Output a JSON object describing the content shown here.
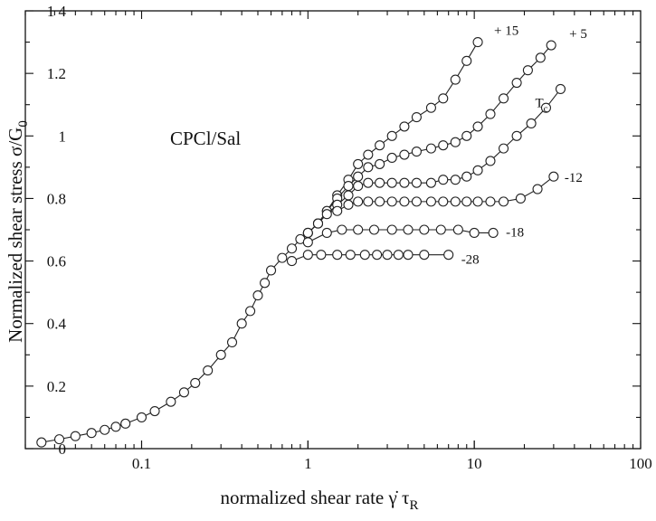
{
  "chart_data": {
    "type": "scatter",
    "title": "",
    "xlabel": "normalized shear rate",
    "xlabel_symbol": "γ̇ τ",
    "xlabel_subscript": "R",
    "ylabel": "Normalized shear stress",
    "ylabel_symbol": "σ/G",
    "ylabel_subscript": "0",
    "annotation": "CPCl/Sal",
    "x_scale": "log",
    "xlim": [
      0.02,
      100
    ],
    "ylim": [
      0,
      1.4
    ],
    "x_ticks": [
      {
        "value": 0.1,
        "label": "0.1"
      },
      {
        "value": 1,
        "label": "1"
      },
      {
        "value": 10,
        "label": "10"
      },
      {
        "value": 100,
        "label": "100"
      }
    ],
    "y_ticks": [
      {
        "value": 0,
        "label": "0"
      },
      {
        "value": 0.2,
        "label": "0.2"
      },
      {
        "value": 0.4,
        "label": "0.4"
      },
      {
        "value": 0.6,
        "label": "0.6"
      },
      {
        "value": 0.8,
        "label": "0.8"
      },
      {
        "value": 1,
        "label": "1"
      },
      {
        "value": 1.2,
        "label": "1.2"
      },
      {
        "value": 1.4,
        "label": "1 4"
      }
    ],
    "grid": false,
    "marker": "open-circle",
    "series": [
      {
        "name": "+ 15",
        "x": [
          0.025,
          0.032,
          0.04,
          0.05,
          0.06,
          0.07,
          0.08,
          0.1,
          0.12,
          0.15,
          0.18,
          0.21,
          0.25,
          0.3,
          0.35,
          0.4,
          0.45,
          0.5,
          0.55,
          0.6,
          0.7,
          0.8,
          0.9,
          1.0,
          1.15,
          1.3,
          1.5,
          1.75,
          2.0,
          2.3,
          2.7,
          3.2,
          3.8,
          4.5,
          5.5,
          6.5,
          7.7,
          9.0,
          10.5
        ],
        "y": [
          0.02,
          0.03,
          0.04,
          0.05,
          0.06,
          0.07,
          0.08,
          0.1,
          0.12,
          0.15,
          0.18,
          0.21,
          0.25,
          0.3,
          0.34,
          0.4,
          0.44,
          0.49,
          0.53,
          0.57,
          0.61,
          0.64,
          0.67,
          0.69,
          0.72,
          0.76,
          0.81,
          0.86,
          0.91,
          0.94,
          0.97,
          1.0,
          1.03,
          1.06,
          1.09,
          1.12,
          1.18,
          1.24,
          1.3
        ]
      },
      {
        "name": "+ 5",
        "x": [
          1.0,
          1.15,
          1.3,
          1.5,
          1.75,
          2.0,
          2.3,
          2.7,
          3.2,
          3.8,
          4.5,
          5.5,
          6.5,
          7.7,
          9.0,
          10.5,
          12.5,
          15.0,
          18.0,
          21.0,
          25.0,
          29.0
        ],
        "y": [
          0.69,
          0.72,
          0.76,
          0.8,
          0.84,
          0.87,
          0.9,
          0.91,
          0.93,
          0.94,
          0.95,
          0.96,
          0.97,
          0.98,
          1.0,
          1.03,
          1.07,
          1.12,
          1.17,
          1.21,
          1.25,
          1.29
        ]
      },
      {
        "name": "T",
        "name_subscript": "c",
        "x": [
          1.0,
          1.15,
          1.3,
          1.5,
          1.75,
          2.0,
          2.3,
          2.7,
          3.2,
          3.8,
          4.5,
          5.5,
          6.5,
          7.7,
          9.0,
          10.5,
          12.5,
          15.0,
          18.0,
          22.0,
          27.0,
          33.0
        ],
        "y": [
          0.69,
          0.72,
          0.75,
          0.78,
          0.81,
          0.84,
          0.85,
          0.85,
          0.85,
          0.85,
          0.85,
          0.85,
          0.86,
          0.86,
          0.87,
          0.89,
          0.92,
          0.96,
          1.0,
          1.04,
          1.09,
          1.15
        ]
      },
      {
        "name": "-12",
        "x": [
          1.5,
          1.75,
          2.0,
          2.3,
          2.7,
          3.2,
          3.8,
          4.5,
          5.5,
          6.5,
          7.7,
          9.0,
          10.5,
          12.5,
          15.0,
          19.0,
          24.0,
          30.0
        ],
        "y": [
          0.76,
          0.78,
          0.79,
          0.79,
          0.79,
          0.79,
          0.79,
          0.79,
          0.79,
          0.79,
          0.79,
          0.79,
          0.79,
          0.79,
          0.79,
          0.8,
          0.83,
          0.87
        ]
      },
      {
        "name": "-18",
        "x": [
          1.0,
          1.3,
          1.6,
          2.0,
          2.5,
          3.2,
          4.0,
          5.0,
          6.3,
          8.0,
          10.0,
          13.0
        ],
        "y": [
          0.66,
          0.69,
          0.7,
          0.7,
          0.7,
          0.7,
          0.7,
          0.7,
          0.7,
          0.7,
          0.69,
          0.69
        ]
      },
      {
        "name": "-28",
        "x": [
          0.8,
          1.0,
          1.2,
          1.5,
          1.8,
          2.2,
          2.6,
          3.0,
          3.5,
          4.0,
          5.0,
          7.0
        ],
        "y": [
          0.6,
          0.62,
          0.62,
          0.62,
          0.62,
          0.62,
          0.62,
          0.62,
          0.62,
          0.62,
          0.62,
          0.62
        ]
      }
    ]
  }
}
